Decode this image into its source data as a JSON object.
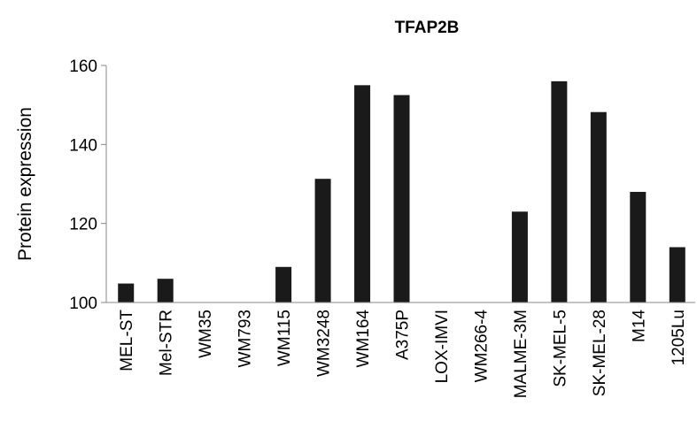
{
  "chart_data": {
    "type": "bar",
    "title": "TFAP2B",
    "xlabel": "",
    "ylabel": "Protein expression",
    "ylim": [
      100,
      160
    ],
    "yticks": [
      100,
      120,
      140,
      160
    ],
    "grid": false,
    "categories": [
      "MEL-ST",
      "Mel-STR",
      "WM35",
      "WM793",
      "WM115",
      "WM3248",
      "WM164",
      "A375P",
      "LOX-IMVI",
      "WM266-4",
      "MALME-3M",
      "SK-MEL-5",
      "SK-MEL-28",
      "M14",
      "1205Lu"
    ],
    "values": [
      104.8,
      106.0,
      100,
      100,
      109.0,
      131.3,
      155.0,
      152.5,
      100,
      100,
      123.0,
      156.0,
      148.2,
      128.0,
      114.0
    ],
    "bar_color": "#1a1a1a"
  }
}
